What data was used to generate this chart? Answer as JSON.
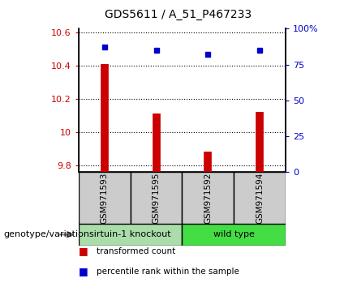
{
  "title": "GDS5611 / A_51_P467233",
  "samples": [
    "GSM971593",
    "GSM971595",
    "GSM971592",
    "GSM971594"
  ],
  "transformed_counts": [
    10.41,
    10.11,
    9.885,
    10.12
  ],
  "percentile_ranks": [
    87,
    85,
    82,
    85
  ],
  "ylim_left": [
    9.76,
    10.62
  ],
  "ylim_right": [
    0,
    100
  ],
  "yticks_left": [
    9.8,
    10.0,
    10.2,
    10.4,
    10.6
  ],
  "yticks_right": [
    0,
    25,
    50,
    75,
    100
  ],
  "ytick_labels_left": [
    "9.8",
    "10",
    "10.2",
    "10.4",
    "10.6"
  ],
  "ytick_labels_right": [
    "0",
    "25",
    "50",
    "75",
    "100%"
  ],
  "groups": [
    {
      "label": "sirtuin-1 knockout",
      "indices": [
        0,
        1
      ],
      "color": "#aaddaa"
    },
    {
      "label": "wild type",
      "indices": [
        2,
        3
      ],
      "color": "#44dd44"
    }
  ],
  "bar_color": "#cc0000",
  "dot_color": "#0000cc",
  "bar_bottom": 9.76,
  "tick_color_left": "#cc0000",
  "tick_color_right": "#0000cc",
  "legend_items": [
    {
      "color": "#cc0000",
      "label": "transformed count"
    },
    {
      "color": "#0000cc",
      "label": "percentile rank within the sample"
    }
  ],
  "genotype_label": "genotype/variation",
  "sample_box_color": "#cccccc"
}
